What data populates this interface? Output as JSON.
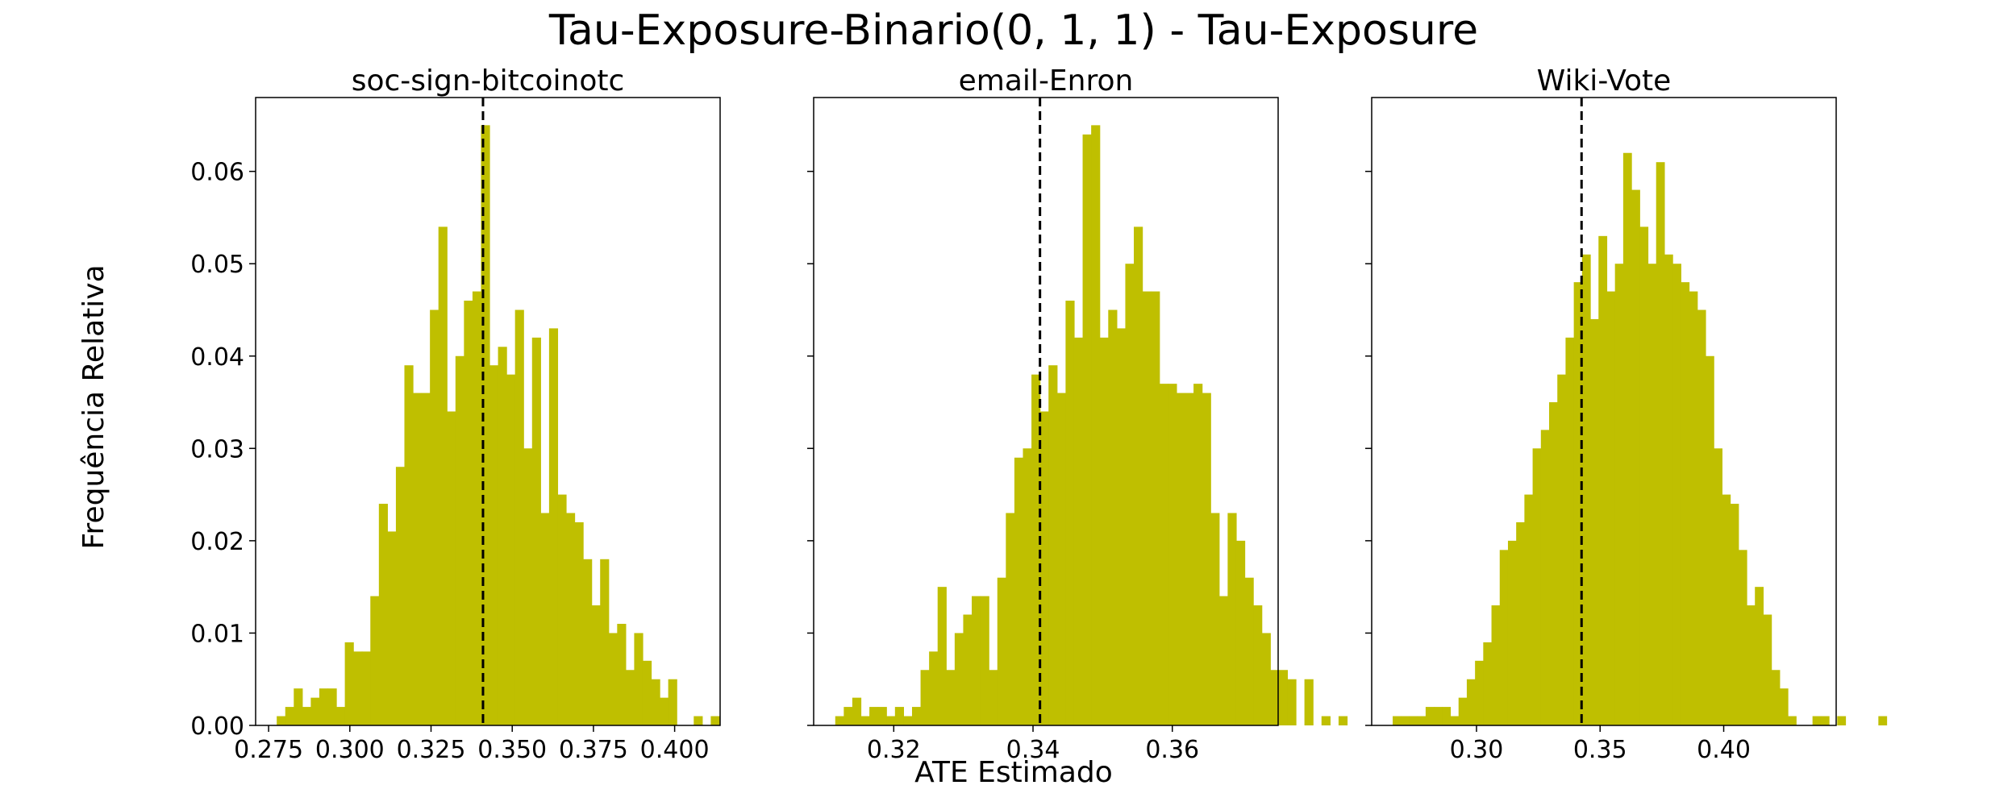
{
  "figure": {
    "title": "Tau-Exposure-Binario(0, 1, 1) - Tau-Exposure",
    "ylabel": "Frequência Relativa",
    "xlabel": "ATE Estimado",
    "bar_color": "#bfbf00",
    "line_color": "#000000"
  },
  "chart_data": [
    {
      "type": "bar",
      "title": "soc-sign-bitcoinotc",
      "xlim": [
        0.271,
        0.414
      ],
      "ylim": [
        0,
        0.068
      ],
      "xticks": [
        0.275,
        0.3,
        0.325,
        0.35,
        0.375,
        0.4
      ],
      "xtick_labels": [
        "0.275",
        "0.300",
        "0.325",
        "0.350",
        "0.375",
        "0.400"
      ],
      "yticks": [
        0,
        0.01,
        0.02,
        0.03,
        0.04,
        0.05,
        0.06
      ],
      "ytick_labels": [
        "0.00",
        "0.01",
        "0.02",
        "0.03",
        "0.04",
        "0.05",
        "0.06"
      ],
      "vline": 0.341,
      "bin_start": 0.2775,
      "bin_width": 0.00262,
      "values": [
        0.001,
        0.002,
        0.004,
        0.002,
        0.003,
        0.004,
        0.004,
        0.002,
        0.009,
        0.008,
        0.008,
        0.014,
        0.024,
        0.021,
        0.028,
        0.039,
        0.036,
        0.036,
        0.045,
        0.054,
        0.034,
        0.04,
        0.046,
        0.047,
        0.065,
        0.039,
        0.041,
        0.038,
        0.045,
        0.03,
        0.042,
        0.023,
        0.043,
        0.025,
        0.023,
        0.022,
        0.018,
        0.013,
        0.018,
        0.01,
        0.011,
        0.006,
        0.01,
        0.007,
        0.005,
        0.003,
        0.005,
        0.0,
        0.0,
        0.001,
        0.0,
        0.001
      ]
    },
    {
      "type": "bar",
      "title": "email-Enron",
      "xlim": [
        0.3085,
        0.3752
      ],
      "ylim": [
        0,
        0.068
      ],
      "xticks": [
        0.32,
        0.34,
        0.36
      ],
      "xtick_labels": [
        "0.32",
        "0.34",
        "0.36"
      ],
      "yticks": [
        0,
        0.01,
        0.02,
        0.03,
        0.04,
        0.05,
        0.06
      ],
      "ytick_labels": [
        "",
        "",
        "",
        "",
        "",
        "",
        ""
      ],
      "vline": 0.341,
      "bin_start": 0.3116,
      "bin_width": 0.001225,
      "values": [
        0.001,
        0.002,
        0.003,
        0.001,
        0.002,
        0.002,
        0.001,
        0.002,
        0.001,
        0.002,
        0.006,
        0.008,
        0.015,
        0.006,
        0.01,
        0.012,
        0.014,
        0.014,
        0.006,
        0.016,
        0.023,
        0.029,
        0.03,
        0.038,
        0.034,
        0.039,
        0.036,
        0.046,
        0.042,
        0.064,
        0.065,
        0.042,
        0.045,
        0.043,
        0.05,
        0.054,
        0.047,
        0.047,
        0.037,
        0.037,
        0.036,
        0.036,
        0.037,
        0.036,
        0.023,
        0.014,
        0.023,
        0.02,
        0.016,
        0.013,
        0.01,
        0.006,
        0.006,
        0.005,
        0.0,
        0.005,
        0.0,
        0.001,
        0.0,
        0.001
      ]
    },
    {
      "type": "bar",
      "title": "Wiki-Vote",
      "xlim": [
        0.2576,
        0.4455
      ],
      "ylim": [
        0,
        0.068
      ],
      "xticks": [
        0.3,
        0.35,
        0.4
      ],
      "xtick_labels": [
        "0.30",
        "0.35",
        "0.40"
      ],
      "yticks": [
        0,
        0.01,
        0.02,
        0.03,
        0.04,
        0.05,
        0.06
      ],
      "ytick_labels": [
        "",
        "",
        "",
        "",
        "",
        "",
        ""
      ],
      "vline": 0.3425,
      "bin_start": 0.2661,
      "bin_width": 0.00333,
      "values": [
        0.001,
        0.001,
        0.001,
        0.001,
        0.002,
        0.002,
        0.002,
        0.001,
        0.003,
        0.005,
        0.007,
        0.009,
        0.013,
        0.019,
        0.02,
        0.022,
        0.025,
        0.03,
        0.032,
        0.035,
        0.038,
        0.042,
        0.048,
        0.051,
        0.044,
        0.053,
        0.047,
        0.05,
        0.062,
        0.058,
        0.054,
        0.05,
        0.061,
        0.051,
        0.05,
        0.048,
        0.047,
        0.045,
        0.04,
        0.03,
        0.025,
        0.024,
        0.019,
        0.013,
        0.015,
        0.012,
        0.006,
        0.004,
        0.001,
        0.0,
        0.0,
        0.001,
        0.001,
        0.0,
        0.001,
        0.0,
        0.0,
        0.0,
        0.0,
        0.001
      ]
    }
  ]
}
